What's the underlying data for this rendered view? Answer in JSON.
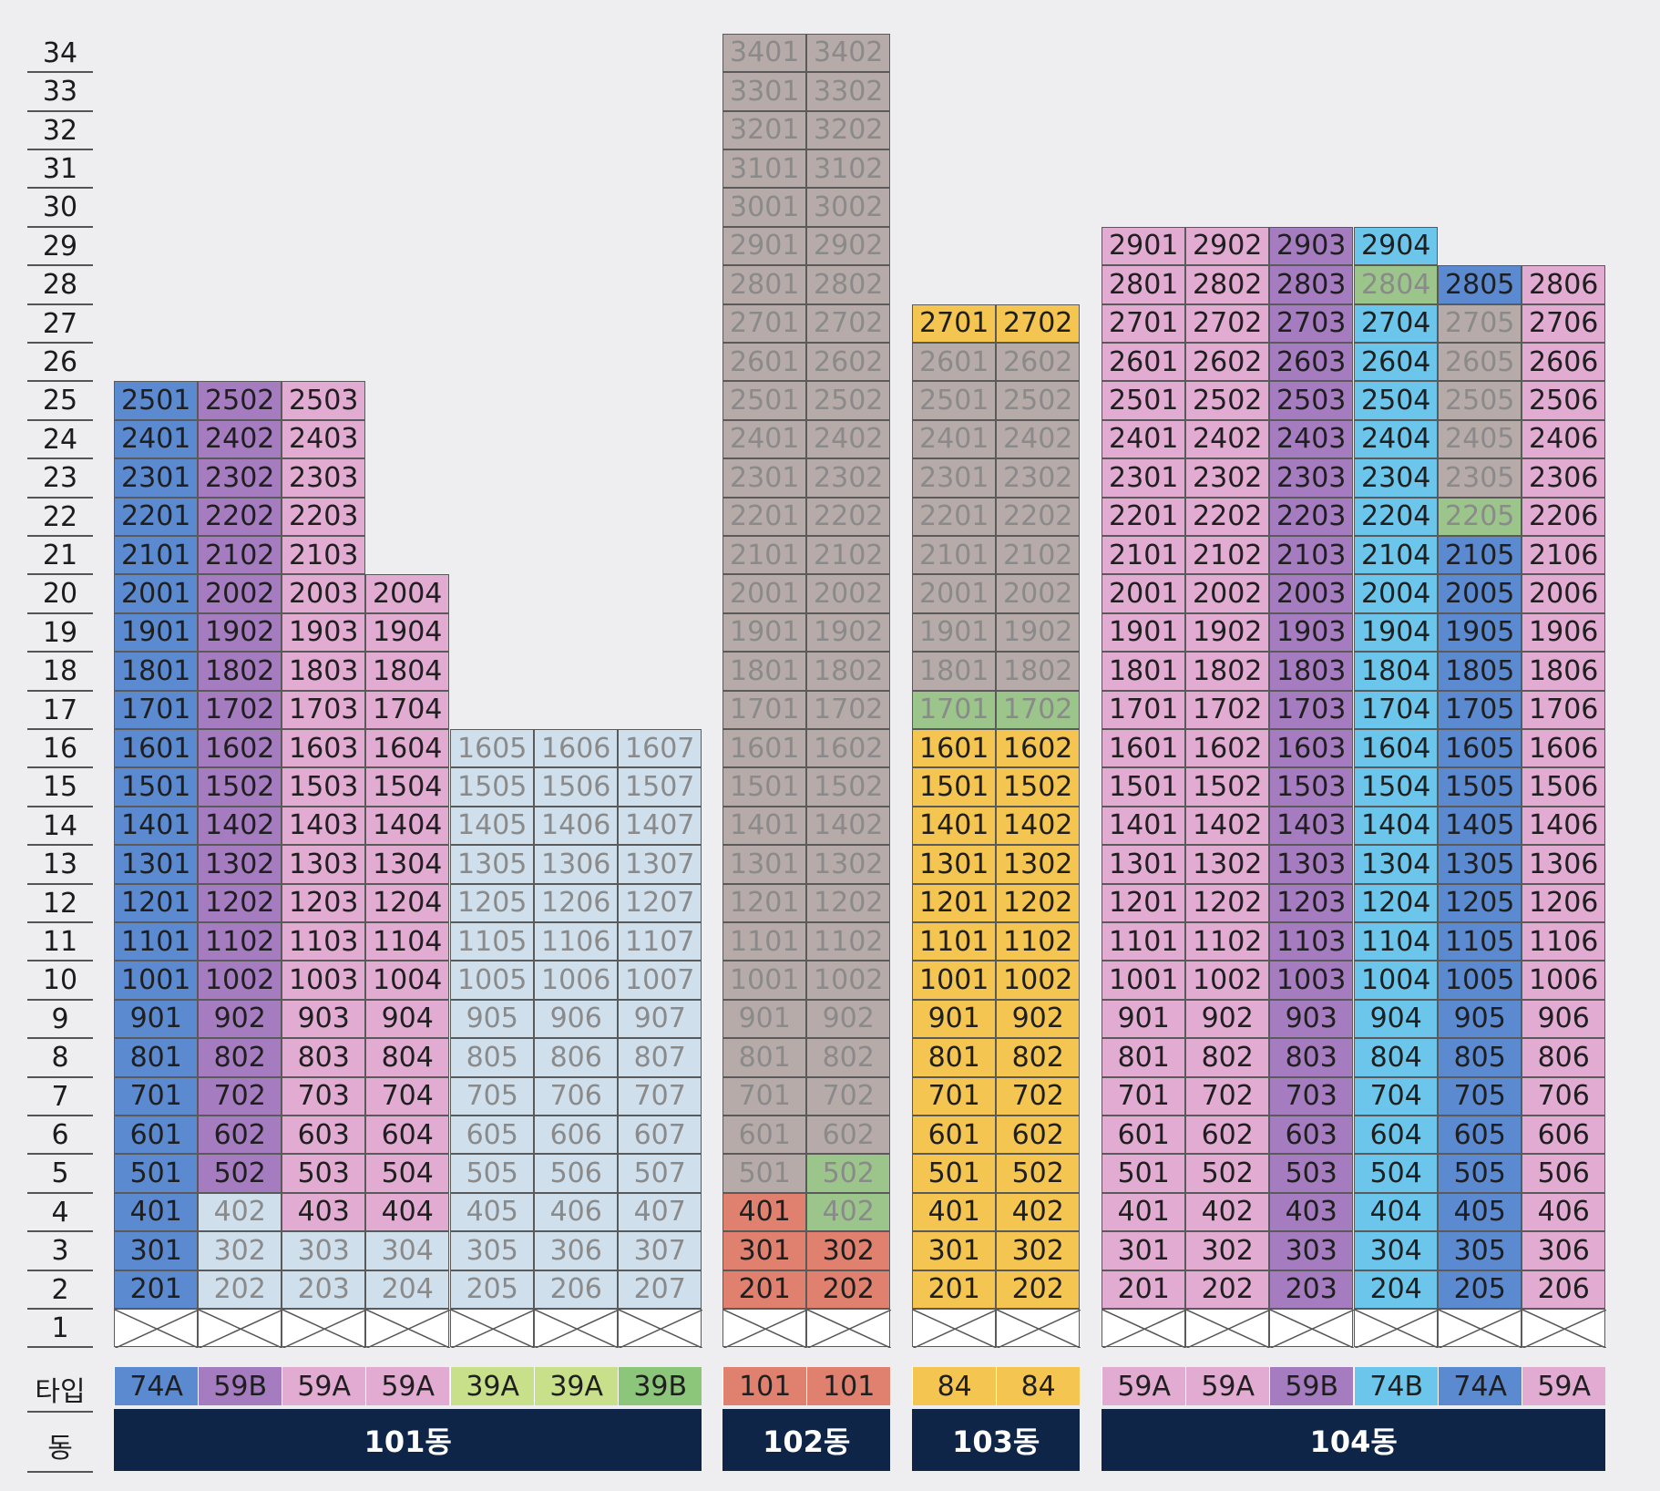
{
  "row_labels": {
    "type": "타입",
    "building": "동"
  },
  "floors": [
    34,
    33,
    32,
    31,
    30,
    29,
    28,
    27,
    26,
    25,
    24,
    23,
    22,
    21,
    20,
    19,
    18,
    17,
    16,
    15,
    14,
    13,
    12,
    11,
    10,
    9,
    8,
    7,
    6,
    5,
    4,
    3,
    2,
    1
  ],
  "colors": {
    "74A": "#5b8ad1",
    "59B": "#a57cbf",
    "59A": "#e2abd2",
    "39": "#cfe0ec",
    "102": "#b7aba9",
    "101": "#e0806f",
    "84": "#f5c552",
    "74B": "#6cc6ec",
    "green": "#9cc58b",
    "type39A": "#c9e08a",
    "type39B": "#8cc67a"
  },
  "buildings": [
    {
      "name": "101동",
      "columns": [
        {
          "type": "74A",
          "type_color": "#5b8ad1",
          "top": 25,
          "segments": [
            {
              "from": 2,
              "to": 25,
              "color": "#5b8ad1",
              "dim": false
            }
          ]
        },
        {
          "type": "59B",
          "type_color": "#a57cbf",
          "top": 25,
          "segments": [
            {
              "from": 2,
              "to": 4,
              "color": "#cfe0ec",
              "dim": true
            },
            {
              "from": 5,
              "to": 25,
              "color": "#a57cbf",
              "dim": false
            }
          ]
        },
        {
          "type": "59A",
          "type_color": "#e2abd2",
          "top": 25,
          "segments": [
            {
              "from": 2,
              "to": 3,
              "color": "#cfe0ec",
              "dim": true
            },
            {
              "from": 4,
              "to": 25,
              "color": "#e2abd2",
              "dim": false
            }
          ]
        },
        {
          "type": "59A",
          "type_color": "#e2abd2",
          "top": 20,
          "segments": [
            {
              "from": 2,
              "to": 3,
              "color": "#cfe0ec",
              "dim": true
            },
            {
              "from": 4,
              "to": 20,
              "color": "#e2abd2",
              "dim": false
            }
          ]
        },
        {
          "type": "39A",
          "type_color": "#c9e08a",
          "top": 16,
          "segments": [
            {
              "from": 2,
              "to": 16,
              "color": "#cfe0ec",
              "dim": true
            }
          ]
        },
        {
          "type": "39A",
          "type_color": "#c9e08a",
          "top": 16,
          "segments": [
            {
              "from": 2,
              "to": 16,
              "color": "#cfe0ec",
              "dim": true
            }
          ]
        },
        {
          "type": "39B",
          "type_color": "#8cc67a",
          "top": 16,
          "segments": [
            {
              "from": 2,
              "to": 16,
              "color": "#cfe0ec",
              "dim": true
            }
          ]
        }
      ]
    },
    {
      "name": "102동",
      "columns": [
        {
          "type": "101",
          "type_color": "#e0806f",
          "top": 34,
          "segments": [
            {
              "from": 2,
              "to": 4,
              "color": "#e0806f",
              "dim": false
            },
            {
              "from": 5,
              "to": 34,
              "color": "#b7aba9",
              "dim": true
            }
          ]
        },
        {
          "type": "101",
          "type_color": "#e0806f",
          "top": 34,
          "segments": [
            {
              "from": 2,
              "to": 3,
              "color": "#e0806f",
              "dim": false
            },
            {
              "from": 4,
              "to": 5,
              "color": "#9cc58b",
              "dim": true
            },
            {
              "from": 6,
              "to": 34,
              "color": "#b7aba9",
              "dim": true
            }
          ]
        }
      ]
    },
    {
      "name": "103동",
      "columns": [
        {
          "type": "84",
          "type_color": "#f5c552",
          "top": 27,
          "segments": [
            {
              "from": 2,
              "to": 16,
              "color": "#f5c552",
              "dim": false
            },
            {
              "from": 17,
              "to": 17,
              "color": "#9cc58b",
              "dim": true
            },
            {
              "from": 18,
              "to": 26,
              "color": "#b7aba9",
              "dim": true
            },
            {
              "from": 27,
              "to": 27,
              "color": "#f5c552",
              "dim": false
            }
          ]
        },
        {
          "type": "84",
          "type_color": "#f5c552",
          "top": 27,
          "segments": [
            {
              "from": 2,
              "to": 16,
              "color": "#f5c552",
              "dim": false
            },
            {
              "from": 17,
              "to": 17,
              "color": "#9cc58b",
              "dim": true
            },
            {
              "from": 18,
              "to": 26,
              "color": "#b7aba9",
              "dim": true
            },
            {
              "from": 27,
              "to": 27,
              "color": "#f5c552",
              "dim": false
            }
          ]
        }
      ]
    },
    {
      "name": "104동",
      "columns": [
        {
          "type": "59A",
          "type_color": "#e2abd2",
          "top": 29,
          "segments": [
            {
              "from": 2,
              "to": 29,
              "color": "#e2abd2",
              "dim": false
            }
          ]
        },
        {
          "type": "59A",
          "type_color": "#e2abd2",
          "top": 29,
          "segments": [
            {
              "from": 2,
              "to": 29,
              "color": "#e2abd2",
              "dim": false
            }
          ]
        },
        {
          "type": "59B",
          "type_color": "#a57cbf",
          "top": 29,
          "segments": [
            {
              "from": 2,
              "to": 29,
              "color": "#a57cbf",
              "dim": false
            }
          ]
        },
        {
          "type": "74B",
          "type_color": "#6cc6ec",
          "top": 29,
          "segments": [
            {
              "from": 2,
              "to": 27,
              "color": "#6cc6ec",
              "dim": false
            },
            {
              "from": 28,
              "to": 28,
              "color": "#9cc58b",
              "dim": true
            },
            {
              "from": 29,
              "to": 29,
              "color": "#6cc6ec",
              "dim": false
            }
          ]
        },
        {
          "type": "74A",
          "type_color": "#5b8ad1",
          "top": 28,
          "segments": [
            {
              "from": 2,
              "to": 21,
              "color": "#5b8ad1",
              "dim": false
            },
            {
              "from": 22,
              "to": 22,
              "color": "#9cc58b",
              "dim": true
            },
            {
              "from": 23,
              "to": 27,
              "color": "#b7aba9",
              "dim": true
            },
            {
              "from": 28,
              "to": 28,
              "color": "#5b8ad1",
              "dim": false
            }
          ]
        },
        {
          "type": "59A",
          "type_color": "#e2abd2",
          "top": 28,
          "segments": [
            {
              "from": 2,
              "to": 28,
              "color": "#e2abd2",
              "dim": false
            }
          ]
        }
      ]
    }
  ]
}
